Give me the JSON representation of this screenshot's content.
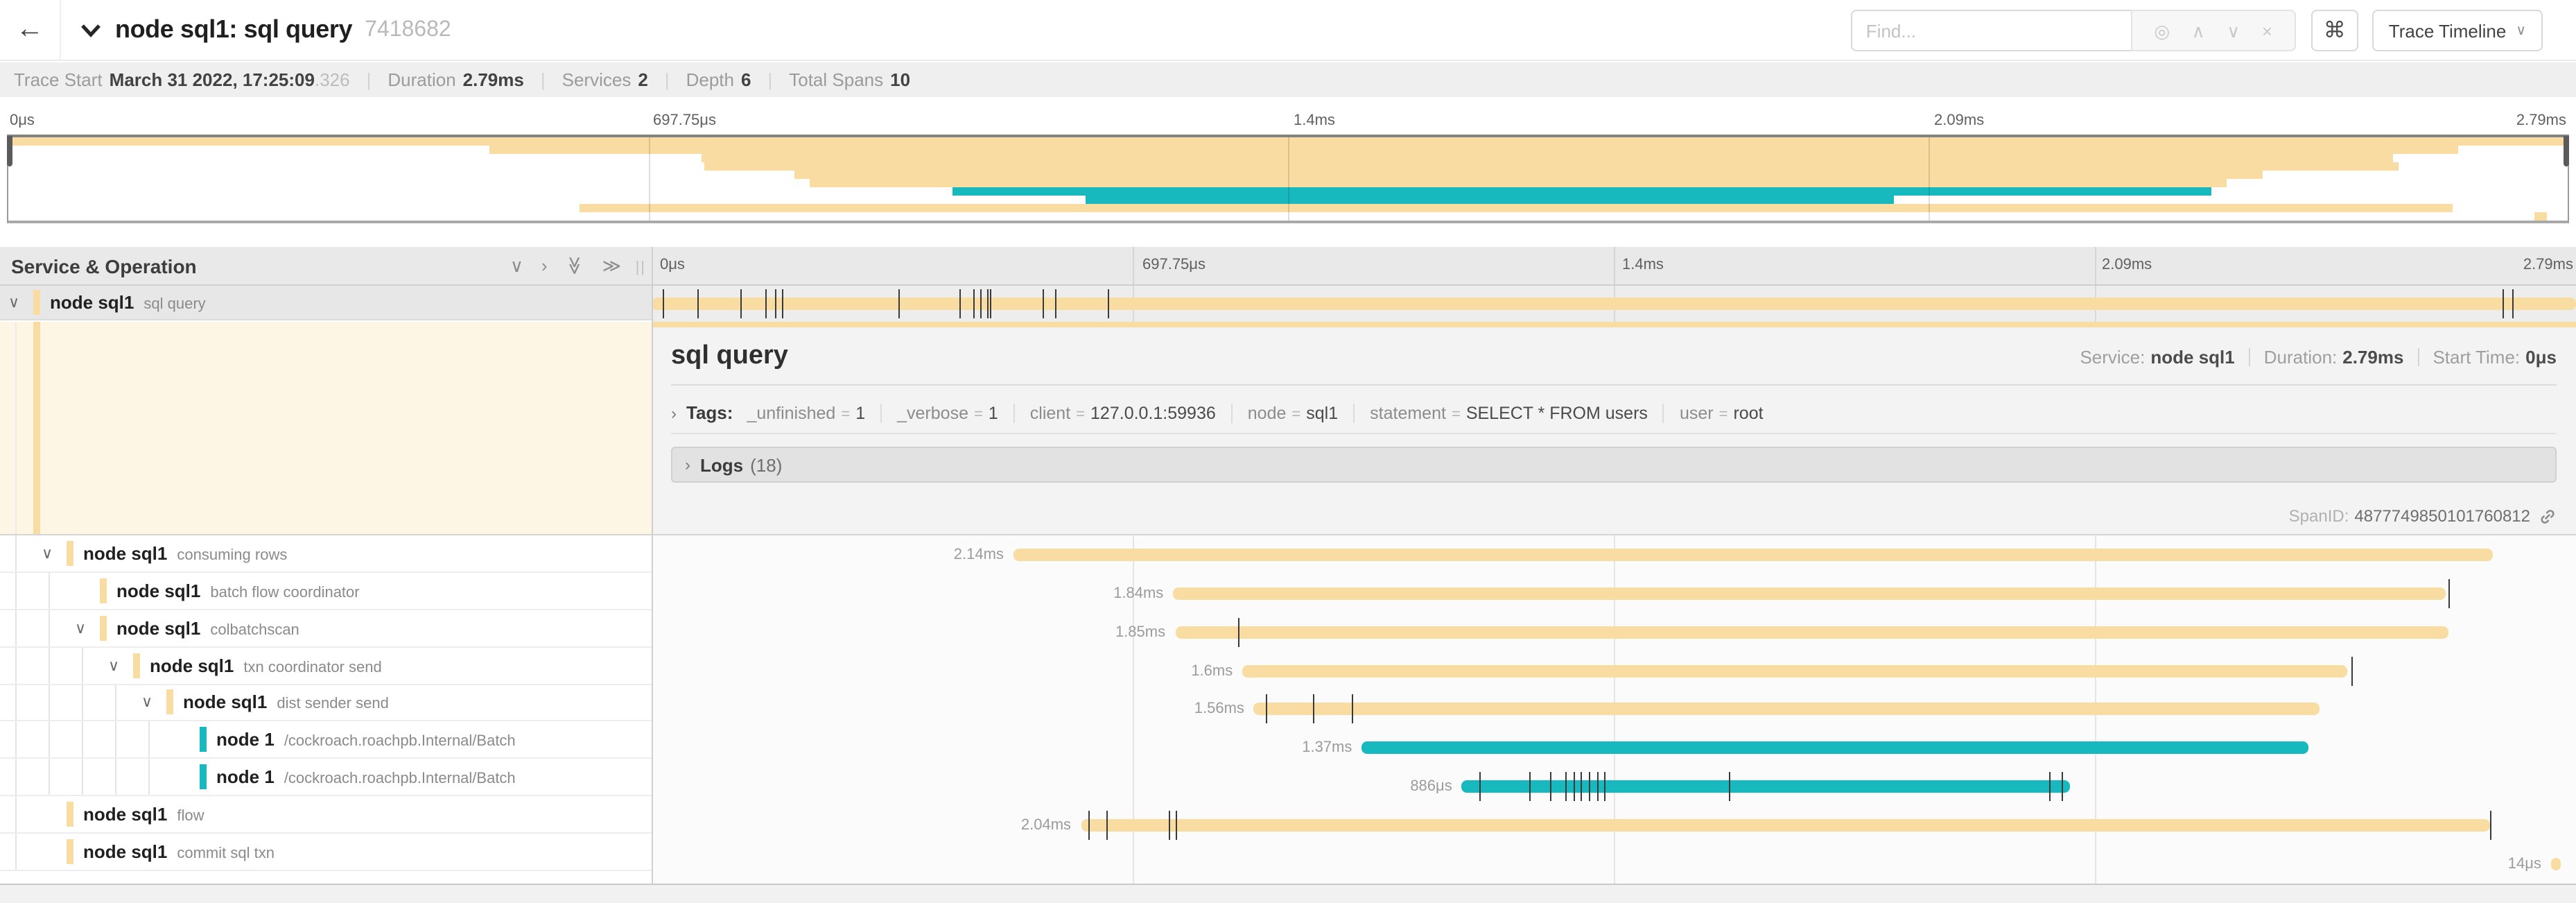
{
  "header": {
    "title": "node sql1: sql query",
    "trace_id": "7418682",
    "find_placeholder": "Find...",
    "shortcut_icon": "⌘",
    "view_button": "Trace Timeline"
  },
  "trace_meta": {
    "trace_start_label": "Trace Start",
    "trace_start_value": "March 31 2022, 17:25:09",
    "trace_start_frac": ".326",
    "duration_label": "Duration",
    "duration_value": "2.79ms",
    "services_label": "Services",
    "services_value": "2",
    "depth_label": "Depth",
    "depth_value": "6",
    "total_spans_label": "Total Spans",
    "total_spans_value": "10"
  },
  "timeline_ticks": [
    "0μs",
    "697.75μs",
    "1.4ms",
    "2.09ms",
    "2.79ms"
  ],
  "left_header": "Service & Operation",
  "colors": {
    "tan": "#F8DCA1",
    "teal": "#17B8BE"
  },
  "root_span": {
    "service": "node sql1",
    "operation": "sql query",
    "depth": 0,
    "expander": true,
    "color": "tan",
    "start": 0,
    "end": 100,
    "ticks": [
      0.6,
      2.4,
      4.6,
      5.9,
      6.4,
      6.8,
      12.8,
      16.0,
      16.7,
      17.1,
      17.4,
      17.6,
      20.3,
      21.0,
      23.7,
      96.2,
      96.7
    ]
  },
  "spans": [
    {
      "service": "node sql1",
      "operation": "consuming rows",
      "depth": 1,
      "expander": true,
      "color": "tan",
      "duration": "2.14ms",
      "start": 18.8,
      "end": 95.7,
      "ticks": []
    },
    {
      "service": "node sql1",
      "operation": "batch flow coordinator",
      "depth": 2,
      "expander": false,
      "color": "tan",
      "duration": "1.84ms",
      "start": 27.1,
      "end": 93.2,
      "ticks": [
        93.4
      ]
    },
    {
      "service": "node sql1",
      "operation": "colbatchscan",
      "depth": 2,
      "expander": true,
      "color": "tan",
      "duration": "1.85ms",
      "start": 27.2,
      "end": 93.4,
      "ticks": [
        30.5
      ]
    },
    {
      "service": "node sql1",
      "operation": "txn coordinator send",
      "depth": 3,
      "expander": true,
      "color": "tan",
      "duration": "1.6ms",
      "start": 30.7,
      "end": 88.1,
      "ticks": [
        88.3
      ]
    },
    {
      "service": "node sql1",
      "operation": "dist sender send",
      "depth": 4,
      "expander": true,
      "color": "tan",
      "duration": "1.56ms",
      "start": 31.3,
      "end": 86.7,
      "ticks": [
        31.9,
        34.4,
        36.4
      ]
    },
    {
      "service": "node 1",
      "operation": "/cockroach.roachpb.Internal/Batch",
      "depth": 5,
      "expander": false,
      "color": "teal",
      "duration": "1.37ms",
      "start": 36.9,
      "end": 86.1,
      "ticks": []
    },
    {
      "service": "node 1",
      "operation": "/cockroach.roachpb.Internal/Batch",
      "depth": 5,
      "expander": false,
      "color": "teal",
      "duration": "886μs",
      "start": 42.1,
      "end": 73.7,
      "ticks": [
        43.0,
        45.6,
        46.7,
        47.5,
        47.9,
        48.3,
        48.7,
        49.1,
        49.5,
        56.0,
        72.6,
        73.3
      ]
    },
    {
      "service": "node sql1",
      "operation": "flow",
      "depth": 1,
      "expander": false,
      "color": "tan",
      "duration": "2.04ms",
      "start": 22.3,
      "end": 95.5,
      "ticks": [
        22.7,
        23.6,
        26.9,
        27.2,
        95.5
      ]
    },
    {
      "service": "node sql1",
      "operation": "commit sql txn",
      "depth": 1,
      "expander": false,
      "color": "tan",
      "duration": "14μs",
      "start": 98.7,
      "end": 99.2,
      "ticks": []
    }
  ],
  "detail": {
    "title": "sql query",
    "service_label": "Service:",
    "service_value": "node sql1",
    "duration_label": "Duration:",
    "duration_value": "2.79ms",
    "start_label": "Start Time:",
    "start_value": "0μs",
    "tags_label": "Tags:",
    "tags": [
      {
        "key": "_unfinished",
        "value": "1"
      },
      {
        "key": "_verbose",
        "value": "1"
      },
      {
        "key": "client",
        "value": "127.0.0.1:59936"
      },
      {
        "key": "node",
        "value": "sql1"
      },
      {
        "key": "statement",
        "value": "SELECT * FROM users"
      },
      {
        "key": "user",
        "value": "root"
      }
    ],
    "logs_label": "Logs",
    "logs_count": "(18)",
    "span_id_label": "SpanID:",
    "span_id": "4877749850101760812"
  }
}
